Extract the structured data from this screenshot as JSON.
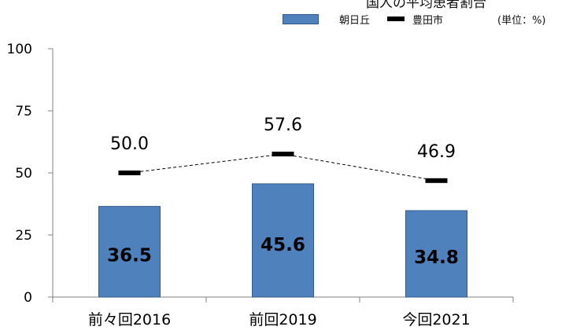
{
  "header": {
    "title_fragment": "国人の平均患者割合",
    "unit": "(単位：%)"
  },
  "colors": {
    "bar": "#4f81bd",
    "bar_stroke": "#2f5a8f",
    "line_marker": "#000000",
    "axis": "#808080"
  },
  "chart_data": {
    "type": "bar",
    "categories": [
      "前々回2016",
      "前回2019",
      "今回2021"
    ],
    "ylim": [
      0,
      100
    ],
    "yticks": [
      0,
      25,
      50,
      75,
      100
    ],
    "grid": false,
    "legend_position": "top-right",
    "series": [
      {
        "name": "朝日丘",
        "type": "bar",
        "values": [
          36.5,
          45.6,
          34.8
        ],
        "labels": [
          "36.5",
          "45.6",
          "34.8"
        ]
      },
      {
        "name": "豊田市",
        "type": "line",
        "style": "dashed",
        "values": [
          50.0,
          57.6,
          46.9
        ],
        "labels": [
          "50.0",
          "57.6",
          "46.9"
        ]
      }
    ]
  }
}
